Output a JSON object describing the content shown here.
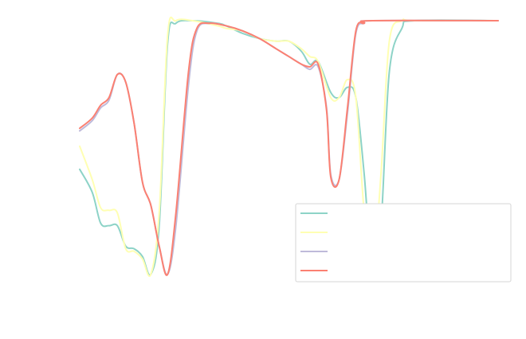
{
  "chart_data": {
    "type": "line",
    "title": "",
    "xlabel": "",
    "ylabel": "",
    "xlim": [
      0,
      100
    ],
    "ylim": [
      0,
      1
    ],
    "grid": false,
    "legend": {
      "position": "lower-right",
      "entries": [
        "",
        "",
        "",
        ""
      ]
    },
    "series": [
      {
        "color": "#8dd3c7",
        "points": [
          [
            0,
            0.42
          ],
          [
            3,
            0.33
          ],
          [
            5,
            0.21
          ],
          [
            7,
            0.2
          ],
          [
            9,
            0.2
          ],
          [
            11,
            0.12
          ],
          [
            13,
            0.11
          ],
          [
            15,
            0.08
          ],
          [
            17,
            0.01
          ],
          [
            19,
            0.2
          ],
          [
            21,
            0.91
          ],
          [
            23,
            0.99
          ],
          [
            27,
            1.0
          ],
          [
            33,
            0.99
          ],
          [
            35,
            0.98
          ],
          [
            39,
            0.95
          ],
          [
            43,
            0.93
          ],
          [
            47,
            0.92
          ],
          [
            50,
            0.92
          ],
          [
            53,
            0.88
          ],
          [
            55,
            0.83
          ],
          [
            57,
            0.84
          ],
          [
            60,
            0.72
          ],
          [
            62,
            0.7
          ],
          [
            64,
            0.74
          ],
          [
            66,
            0.7
          ],
          [
            68,
            0.4
          ],
          [
            70,
            0.01
          ],
          [
            72,
            0.2
          ],
          [
            74,
            0.8
          ],
          [
            77,
            0.97
          ],
          [
            80,
            1.0
          ],
          [
            100,
            1.0
          ]
        ]
      },
      {
        "color": "#ffffb3",
        "points": [
          [
            0,
            0.51
          ],
          [
            3,
            0.38
          ],
          [
            5,
            0.27
          ],
          [
            7,
            0.26
          ],
          [
            9,
            0.25
          ],
          [
            11,
            0.11
          ],
          [
            13,
            0.1
          ],
          [
            15,
            0.07
          ],
          [
            17,
            0.01
          ],
          [
            19,
            0.25
          ],
          [
            21,
            0.94
          ],
          [
            23,
            1.0
          ],
          [
            27,
            1.0
          ],
          [
            33,
            0.98
          ],
          [
            35,
            0.97
          ],
          [
            39,
            0.96
          ],
          [
            43,
            0.93
          ],
          [
            47,
            0.92
          ],
          [
            50,
            0.92
          ],
          [
            53,
            0.89
          ],
          [
            55,
            0.86
          ],
          [
            57,
            0.84
          ],
          [
            60,
            0.7
          ],
          [
            62,
            0.7
          ],
          [
            64,
            0.77
          ],
          [
            66,
            0.7
          ],
          [
            68,
            0.25
          ],
          [
            70,
            0.03
          ],
          [
            72,
            0.4
          ],
          [
            74,
            0.92
          ],
          [
            77,
            1.0
          ],
          [
            80,
            1.0
          ],
          [
            100,
            1.0
          ]
        ]
      },
      {
        "color": "#bebada",
        "points": [
          [
            0,
            0.57
          ],
          [
            3,
            0.61
          ],
          [
            5,
            0.66
          ],
          [
            7,
            0.69
          ],
          [
            9,
            0.79
          ],
          [
            11,
            0.76
          ],
          [
            13,
            0.6
          ],
          [
            15,
            0.37
          ],
          [
            17,
            0.28
          ],
          [
            19,
            0.12
          ],
          [
            21,
            0.01
          ],
          [
            23,
            0.2
          ],
          [
            26,
            0.75
          ],
          [
            28,
            0.96
          ],
          [
            31,
            0.99
          ],
          [
            35,
            0.98
          ],
          [
            39,
            0.96
          ],
          [
            43,
            0.93
          ],
          [
            47,
            0.89
          ],
          [
            50,
            0.86
          ],
          [
            53,
            0.83
          ],
          [
            55,
            0.81
          ],
          [
            57,
            0.82
          ],
          [
            59,
            0.66
          ],
          [
            60,
            0.4
          ],
          [
            62,
            0.38
          ],
          [
            64,
            0.64
          ],
          [
            66,
            0.95
          ],
          [
            68,
            0.99
          ],
          [
            70,
            1.0
          ],
          [
            100,
            1.0
          ]
        ]
      },
      {
        "color": "#fb8072",
        "points": [
          [
            0,
            0.58
          ],
          [
            3,
            0.62
          ],
          [
            5,
            0.67
          ],
          [
            7,
            0.7
          ],
          [
            9,
            0.79
          ],
          [
            11,
            0.76
          ],
          [
            13,
            0.6
          ],
          [
            15,
            0.37
          ],
          [
            17,
            0.28
          ],
          [
            19,
            0.12
          ],
          [
            21,
            0.01
          ],
          [
            23,
            0.25
          ],
          [
            26,
            0.8
          ],
          [
            28,
            0.97
          ],
          [
            31,
            0.99
          ],
          [
            35,
            0.98
          ],
          [
            39,
            0.96
          ],
          [
            43,
            0.93
          ],
          [
            47,
            0.89
          ],
          [
            50,
            0.86
          ],
          [
            53,
            0.83
          ],
          [
            55,
            0.82
          ],
          [
            57,
            0.83
          ],
          [
            59,
            0.65
          ],
          [
            60,
            0.39
          ],
          [
            62,
            0.38
          ],
          [
            64,
            0.66
          ],
          [
            66,
            0.96
          ],
          [
            68,
            0.99
          ],
          [
            70,
            1.0
          ],
          [
            100,
            1.0
          ]
        ]
      }
    ]
  }
}
